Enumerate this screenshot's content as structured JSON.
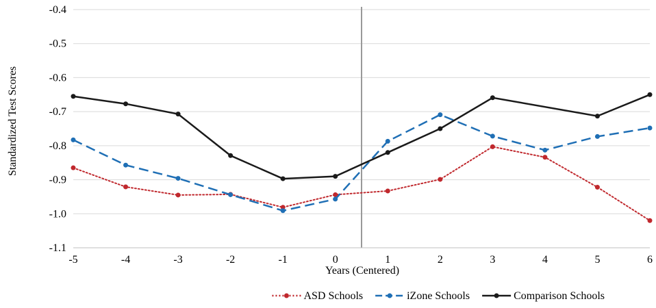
{
  "chart_data": {
    "type": "line",
    "x": [
      -5,
      -4,
      -3,
      -2,
      -1,
      0,
      1,
      2,
      3,
      4,
      5,
      6
    ],
    "x_tick_labels": [
      "-5",
      "-4",
      "-3",
      "-2",
      "-1",
      "0",
      "1",
      "2",
      "3",
      "4",
      "5",
      "6"
    ],
    "y_tick_values": [
      -0.4,
      -0.5,
      -0.6,
      -0.7,
      -0.8,
      -0.9,
      -1.0,
      -1.1
    ],
    "y_tick_labels": [
      "-0.4",
      "-0.5",
      "-0.6",
      "-0.7",
      "-0.8",
      "-0.9",
      "-1.0",
      "-1.1"
    ],
    "xlim": [
      -5,
      6
    ],
    "ylim": [
      -1.1,
      -0.4
    ],
    "xlabel": "Years (Centered)",
    "ylabel": "Standardized Test Scores",
    "grid": "horizontal",
    "legend_position": "bottom-right",
    "reference_line_x": 0.5,
    "reference_line_color": "#999999",
    "series": [
      {
        "name": "ASD Schools",
        "color": "#c0282d",
        "style": "dotted",
        "values": [
          -0.865,
          -0.921,
          -0.945,
          -0.943,
          -0.981,
          -0.944,
          -0.933,
          -0.899,
          -0.803,
          -0.834,
          -0.922,
          -1.02
        ]
      },
      {
        "name": "iZone Schools",
        "color": "#1f6fb5",
        "style": "dashed",
        "values": [
          -0.783,
          -0.857,
          -0.896,
          -0.944,
          -0.991,
          -0.957,
          -0.787,
          -0.709,
          -0.772,
          -0.813,
          -0.773,
          -0.748
        ]
      },
      {
        "name": "Comparison Schools",
        "color": "#1a1a1a",
        "style": "solid",
        "values": [
          -0.655,
          -0.677,
          -0.707,
          -0.829,
          -0.897,
          -0.89,
          -0.82,
          -0.75,
          -0.659,
          null,
          -0.713,
          -0.65
        ]
      }
    ]
  }
}
